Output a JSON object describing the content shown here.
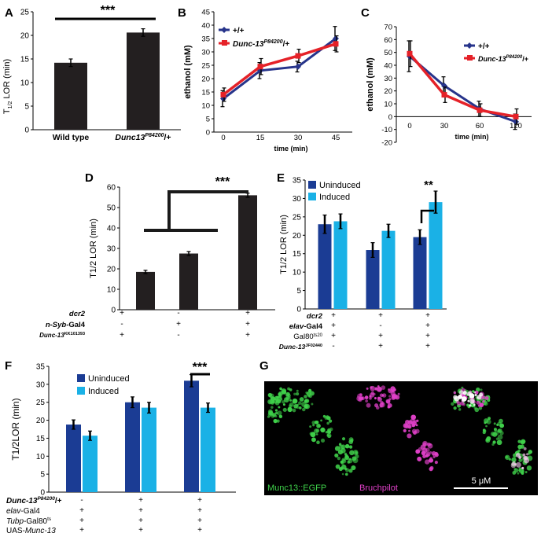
{
  "panels": {
    "A": {
      "letter": "A",
      "ylabel": "T1/2 LOR (min)",
      "ylabel_main": "T",
      "ylabel_sub": "1/2",
      "ylabel_rest": " LOR (min)",
      "sig": "***",
      "xlabels": [
        "Wild type",
        "Dunc13P84200/+"
      ],
      "xlabel2_main": "Dunc13",
      "xlabel2_sup": "P84200",
      "xlabel2_rest": "/+"
    },
    "B": {
      "letter": "B",
      "legend": [
        "+/+",
        "Dunc-13P84200/+"
      ],
      "legend2_main": "Dunc-13",
      "legend2_sup": "P84200",
      "legend2_rest": "/+"
    },
    "C": {
      "letter": "C",
      "legend": [
        "+/+",
        "Dunc-13P84200/+"
      ],
      "legend2_main": "Dunc-13",
      "legend2_sup": "P84200",
      "legend2_rest": "/+"
    },
    "D": {
      "letter": "D",
      "sig": "***",
      "rows": [
        {
          "label": "dcr2",
          "values": [
            "+",
            "-",
            "+"
          ]
        },
        {
          "label": "n-Syb-Gal4",
          "values": [
            "-",
            "+",
            "+"
          ]
        },
        {
          "label": "Dunc-13KK101393",
          "values": [
            "+",
            "-",
            "+"
          ]
        }
      ]
    },
    "E": {
      "letter": "E",
      "sig": "**",
      "legend": [
        "Uninduced",
        "Induced"
      ],
      "rows": [
        {
          "label": "dcr2",
          "values": [
            "+",
            "+",
            "+"
          ]
        },
        {
          "label": "elav-Gal4",
          "values": [
            "+",
            "-",
            "+"
          ]
        },
        {
          "label": "Gal80ts20",
          "values": [
            "+",
            "+",
            "+"
          ]
        },
        {
          "label": "Dunc-13JF02440",
          "values": [
            "-",
            "+",
            "+"
          ]
        }
      ]
    },
    "F": {
      "letter": "F",
      "sig": "***",
      "legend": [
        "Uninduced",
        "Induced"
      ],
      "rows": [
        {
          "label": "Dunc-13P84200/+",
          "values": [
            "-",
            "+",
            "+"
          ]
        },
        {
          "label": "elav-Gal4",
          "values": [
            "+",
            "+",
            "+"
          ]
        },
        {
          "label": "Tubp-Gal80ts",
          "values": [
            "+",
            "+",
            "+"
          ]
        },
        {
          "label": "UAS-Munc-13",
          "values": [
            "+",
            "+",
            "+"
          ]
        }
      ]
    },
    "G": {
      "letter": "G",
      "label_left": "Munc13::EGFP",
      "label_mid": "Bruchpilot",
      "scale": "5 μM"
    }
  },
  "colors": {
    "dark_blue": "#1b3c94",
    "light_blue": "#1ab1e6",
    "black_bar": "#231f20",
    "red": "#e52128",
    "navy": "#27348b",
    "green": "#3fd14a",
    "magenta": "#e040c8"
  },
  "chart_data": [
    {
      "panel": "A",
      "type": "bar",
      "ylabel": "T1/2 LOR (min)",
      "categories": [
        "Wild type",
        "Dunc13P84200/+"
      ],
      "values": [
        14.2,
        20.6
      ],
      "errors": [
        0.8,
        0.8
      ],
      "ylim": [
        0,
        25
      ],
      "yticks": [
        0,
        5,
        10,
        15,
        20,
        25
      ]
    },
    {
      "panel": "B",
      "type": "line",
      "xlabel": "time (min)",
      "ylabel": "ethanol (mM)",
      "x": [
        0,
        15,
        30,
        45
      ],
      "ylim": [
        0,
        45
      ],
      "yticks": [
        0,
        5,
        10,
        15,
        20,
        25,
        30,
        35,
        40,
        45
      ],
      "series": [
        {
          "name": "+/+",
          "values": [
            12.5,
            23,
            24.5,
            35
          ],
          "errors": [
            3,
            3,
            2,
            4.5
          ]
        },
        {
          "name": "Dunc-13P84200/+",
          "values": [
            14,
            24.5,
            28.5,
            33
          ],
          "errors": [
            2.5,
            3,
            2.5,
            3
          ]
        }
      ]
    },
    {
      "panel": "C",
      "type": "line",
      "xlabel": "time (min)",
      "ylabel": "ethanol (mM)",
      "x": [
        0,
        30,
        60,
        120
      ],
      "ylim": [
        -20,
        70
      ],
      "yticks": [
        -20,
        -10,
        0,
        10,
        20,
        30,
        40,
        50,
        60,
        70
      ],
      "series": [
        {
          "name": "+/+",
          "values": [
            47,
            24,
            6,
            -4
          ],
          "errors": [
            12,
            7,
            6,
            6
          ]
        },
        {
          "name": "Dunc-13P84200/+",
          "values": [
            49,
            17,
            5,
            0
          ],
          "errors": [
            10,
            6,
            5,
            6
          ]
        }
      ]
    },
    {
      "panel": "D",
      "type": "bar",
      "ylabel": "T1/2 LOR (min)",
      "categories": [
        "1",
        "2",
        "3"
      ],
      "values": [
        18.5,
        27.5,
        56
      ],
      "errors": [
        0.8,
        1,
        1
      ],
      "ylim": [
        0,
        60
      ],
      "yticks": [
        0,
        10,
        20,
        30,
        40,
        50,
        60
      ]
    },
    {
      "panel": "E",
      "type": "bar",
      "ylabel": "T1/2 LOR (min)",
      "categories": [
        "1",
        "2",
        "3"
      ],
      "ylim": [
        0,
        35
      ],
      "yticks": [
        0,
        5,
        10,
        15,
        20,
        25,
        30,
        35
      ],
      "series": [
        {
          "name": "Uninduced",
          "values": [
            23,
            16,
            19.5
          ],
          "errors": [
            2.5,
            2,
            2
          ]
        },
        {
          "name": "Induced",
          "values": [
            23.8,
            21.2,
            29
          ],
          "errors": [
            2,
            1.8,
            3
          ]
        }
      ]
    },
    {
      "panel": "F",
      "type": "bar",
      "ylabel": "T1/2LOR (min)",
      "categories": [
        "1",
        "2",
        "3"
      ],
      "ylim": [
        0,
        35
      ],
      "yticks": [
        0,
        5,
        10,
        15,
        20,
        25,
        30,
        35
      ],
      "series": [
        {
          "name": "Uninduced",
          "values": [
            18.8,
            25,
            31
          ],
          "errors": [
            1.3,
            1.5,
            1.7
          ]
        },
        {
          "name": "Induced",
          "values": [
            15.7,
            23.5,
            23.5
          ],
          "errors": [
            1.3,
            1.5,
            1.3
          ]
        }
      ]
    }
  ]
}
